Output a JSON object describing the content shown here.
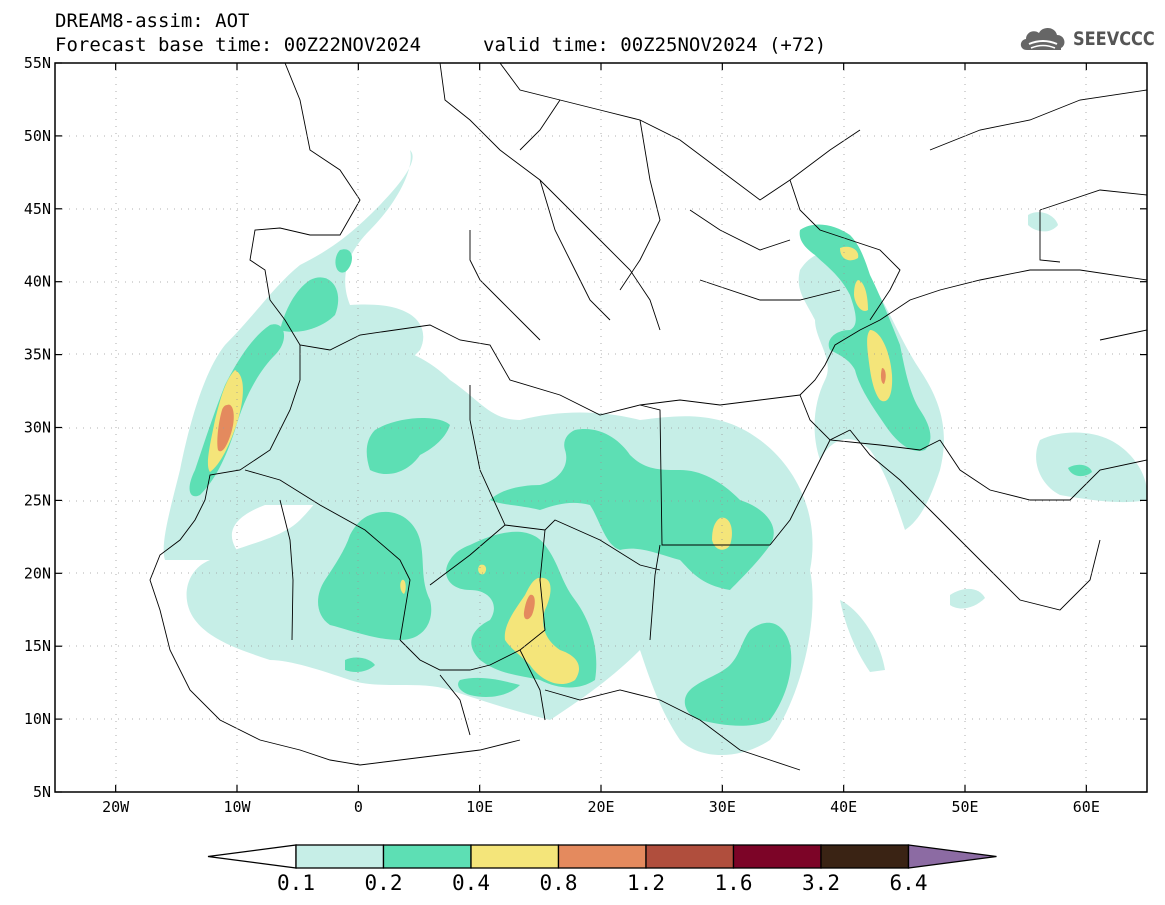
{
  "header": {
    "title_line1": "DREAM8-assim: AOT",
    "base_time": "Forecast base time: 00Z22NOV2024",
    "valid_time": "valid time: 00Z25NOV2024 (+72)"
  },
  "logo": {
    "text": "SEEVCCC",
    "icon": "cloud-icon"
  },
  "map": {
    "lon_range": [
      -25,
      65
    ],
    "lat_range": [
      5,
      55
    ],
    "grid": true,
    "lat_ticks": [
      {
        "value": 55,
        "label": "55N"
      },
      {
        "value": 50,
        "label": "50N"
      },
      {
        "value": 45,
        "label": "45N"
      },
      {
        "value": 40,
        "label": "40N"
      },
      {
        "value": 35,
        "label": "35N"
      },
      {
        "value": 30,
        "label": "30N"
      },
      {
        "value": 25,
        "label": "25N"
      },
      {
        "value": 20,
        "label": "20N"
      },
      {
        "value": 15,
        "label": "15N"
      },
      {
        "value": 10,
        "label": "10N"
      },
      {
        "value": 5,
        "label": "5N"
      }
    ],
    "lon_ticks": [
      {
        "value": -20,
        "label": "20W"
      },
      {
        "value": -10,
        "label": "10W"
      },
      {
        "value": 0,
        "label": "0"
      },
      {
        "value": 10,
        "label": "10E"
      },
      {
        "value": 20,
        "label": "20E"
      },
      {
        "value": 30,
        "label": "30E"
      },
      {
        "value": 40,
        "label": "40E"
      },
      {
        "value": 50,
        "label": "50E"
      },
      {
        "value": 60,
        "label": "60E"
      }
    ]
  },
  "colorbar": {
    "levels": [
      "0.1",
      "0.2",
      "0.4",
      "0.8",
      "1.2",
      "1.6",
      "3.2",
      "6.4"
    ],
    "colors": [
      "#ffffff",
      "#c6eee7",
      "#5ddfb4",
      "#f4e57a",
      "#e48a5e",
      "#b04e3d",
      "#7c0427",
      "#3a2314",
      "#8c6ba3"
    ]
  }
}
